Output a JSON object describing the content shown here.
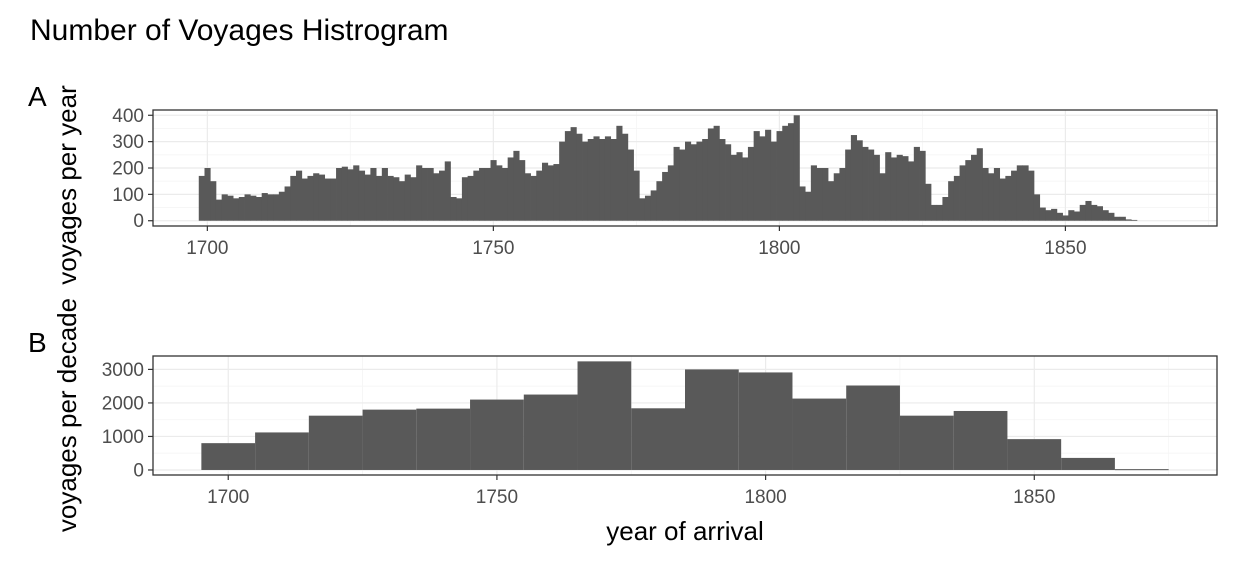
{
  "figure": {
    "title": "Number of Voyages Histrogram",
    "ylabel_a": "voyages per year",
    "ylabel_b": "voyages per decade",
    "xlabel": "year of arrival",
    "bar_color": "#595959",
    "grid_color": "#ebebeb",
    "border_color": "#333333"
  },
  "chart_data": [
    {
      "panel": "A",
      "type": "bar",
      "title": "",
      "xlabel": "",
      "ylabel": "voyages per year",
      "bin_width": 1,
      "xlim": [
        1690.5,
        1876.5
      ],
      "ylim": [
        -20,
        420
      ],
      "x_ticks": [
        1700,
        1750,
        1800,
        1850
      ],
      "y_ticks": [
        0,
        100,
        200,
        300,
        400
      ],
      "grid": true,
      "x_start": 1699,
      "values": [
        170,
        200,
        150,
        80,
        100,
        95,
        85,
        90,
        100,
        95,
        90,
        105,
        100,
        100,
        110,
        130,
        170,
        190,
        160,
        170,
        180,
        175,
        160,
        160,
        200,
        205,
        195,
        210,
        190,
        175,
        200,
        170,
        200,
        170,
        165,
        150,
        175,
        165,
        210,
        200,
        200,
        180,
        190,
        225,
        90,
        85,
        165,
        170,
        190,
        200,
        200,
        230,
        210,
        200,
        240,
        265,
        230,
        180,
        170,
        190,
        220,
        210,
        215,
        300,
        340,
        355,
        330,
        300,
        310,
        320,
        310,
        320,
        310,
        360,
        330,
        270,
        190,
        85,
        95,
        115,
        150,
        185,
        210,
        280,
        270,
        300,
        290,
        300,
        310,
        350,
        360,
        310,
        290,
        250,
        260,
        240,
        280,
        340,
        320,
        345,
        300,
        340,
        360,
        370,
        400,
        130,
        110,
        210,
        200,
        200,
        150,
        180,
        200,
        270,
        325,
        305,
        280,
        270,
        250,
        180,
        260,
        240,
        250,
        245,
        225,
        280,
        265,
        140,
        60,
        60,
        90,
        150,
        170,
        210,
        230,
        250,
        275,
        200,
        180,
        200,
        160,
        170,
        190,
        210,
        210,
        190,
        100,
        50,
        40,
        45,
        30,
        20,
        40,
        35,
        60,
        75,
        60,
        55,
        40,
        30,
        15,
        15,
        5,
        3,
        0
      ]
    },
    {
      "panel": "B",
      "type": "bar",
      "title": "",
      "xlabel": "year of arrival",
      "ylabel": "voyages per decade",
      "bin_width": 10,
      "xlim": [
        1686,
        1884
      ],
      "ylim": [
        -150,
        3400
      ],
      "x_ticks": [
        1700,
        1750,
        1800,
        1850
      ],
      "y_ticks": [
        0,
        1000,
        2000,
        3000
      ],
      "grid": true,
      "bins": [
        {
          "x0": 1695,
          "x1": 1705,
          "value": 800
        },
        {
          "x0": 1705,
          "x1": 1715,
          "value": 1120
        },
        {
          "x0": 1715,
          "x1": 1725,
          "value": 1620
        },
        {
          "x0": 1725,
          "x1": 1735,
          "value": 1800
        },
        {
          "x0": 1735,
          "x1": 1745,
          "value": 1830
        },
        {
          "x0": 1745,
          "x1": 1755,
          "value": 2100
        },
        {
          "x0": 1755,
          "x1": 1765,
          "value": 2250
        },
        {
          "x0": 1765,
          "x1": 1775,
          "value": 3240
        },
        {
          "x0": 1775,
          "x1": 1785,
          "value": 1840
        },
        {
          "x0": 1785,
          "x1": 1795,
          "value": 3000
        },
        {
          "x0": 1795,
          "x1": 1805,
          "value": 2910
        },
        {
          "x0": 1805,
          "x1": 1815,
          "value": 2130
        },
        {
          "x0": 1815,
          "x1": 1825,
          "value": 2520
        },
        {
          "x0": 1825,
          "x1": 1835,
          "value": 1620
        },
        {
          "x0": 1835,
          "x1": 1845,
          "value": 1760
        },
        {
          "x0": 1845,
          "x1": 1855,
          "value": 920
        },
        {
          "x0": 1855,
          "x1": 1865,
          "value": 360
        },
        {
          "x0": 1865,
          "x1": 1875,
          "value": 25
        }
      ]
    }
  ]
}
